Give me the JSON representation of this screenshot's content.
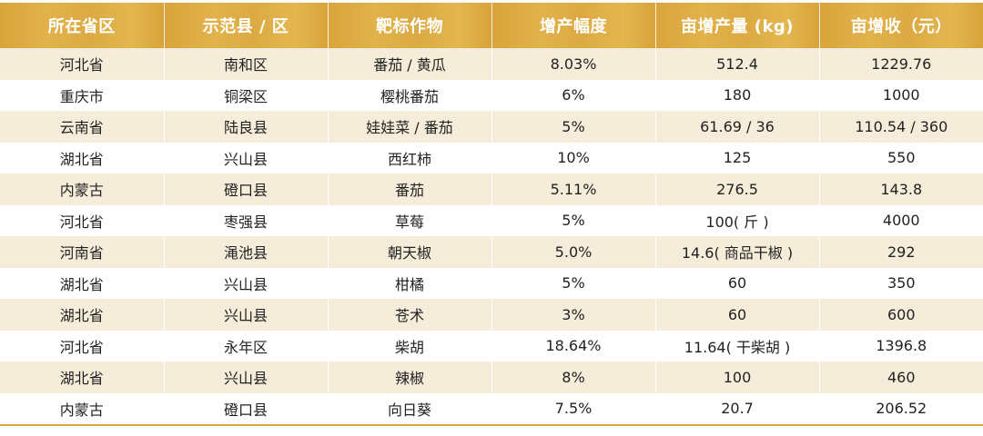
{
  "table": {
    "headers": [
      "所在省区",
      "示范县 / 区",
      "靶标作物",
      "增产幅度",
      "亩增产量 (kg)",
      "亩增收（元）"
    ],
    "rows": [
      [
        "河北省",
        "南和区",
        "番茄 / 黄瓜",
        "8.03%",
        "512.4",
        "1229.76"
      ],
      [
        "重庆市",
        "铜梁区",
        "樱桃番茄",
        "6%",
        "180",
        "1000"
      ],
      [
        "云南省",
        "陆良县",
        "娃娃菜 / 番茄",
        "5%",
        "61.69 / 36",
        "110.54 / 360"
      ],
      [
        "湖北省",
        "兴山县",
        "西红柿",
        "10%",
        "125",
        "550"
      ],
      [
        "内蒙古",
        "磴口县",
        "番茄",
        "5.11%",
        "276.5",
        "143.8"
      ],
      [
        "河北省",
        "枣强县",
        "草莓",
        "5%",
        "100( 斤 )",
        "4000"
      ],
      [
        "河南省",
        "渑池县",
        "朝天椒",
        "5.0%",
        "14.6( 商品干椒 )",
        "292"
      ],
      [
        "湖北省",
        "兴山县",
        "柑橘",
        "5%",
        "60",
        "350"
      ],
      [
        "湖北省",
        "兴山县",
        "苍术",
        "3%",
        "60",
        "600"
      ],
      [
        "河北省",
        "永年区",
        "柴胡",
        "18.64%",
        "11.64( 干柴胡 )",
        "1396.8"
      ],
      [
        "湖北省",
        "兴山县",
        "辣椒",
        "8%",
        "100",
        "460"
      ],
      [
        "内蒙古",
        "磴口县",
        "向日葵",
        "7.5%",
        "20.7",
        "206.52"
      ]
    ]
  },
  "colors": {
    "header_gold": "#d9a53e",
    "stripe_beige": "#f5ecd9",
    "text": "#222222"
  }
}
